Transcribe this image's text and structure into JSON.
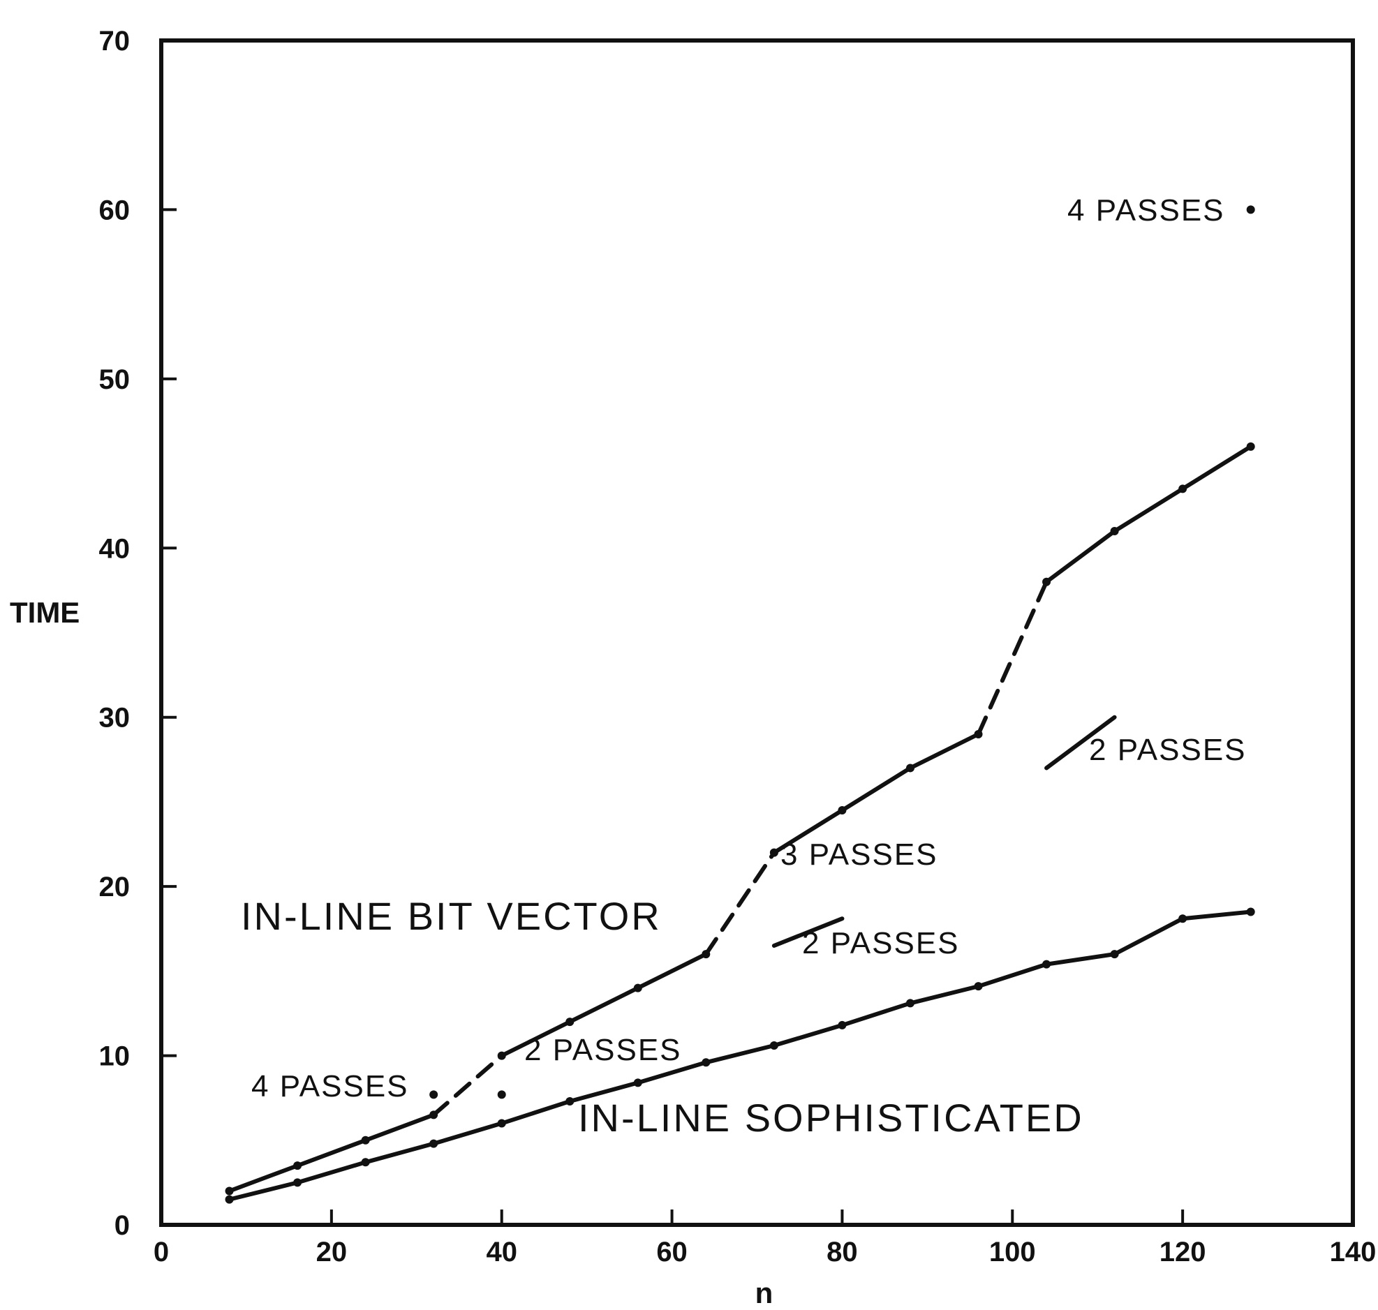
{
  "chart_data": {
    "type": "line",
    "title": "",
    "xlabel": "n",
    "ylabel": "TIME",
    "xlim": [
      0,
      140
    ],
    "ylim": [
      0,
      70
    ],
    "xticks": [
      0,
      20,
      40,
      60,
      80,
      100,
      120,
      140
    ],
    "yticks": [
      0,
      10,
      20,
      30,
      40,
      50,
      60,
      70
    ],
    "grid": false,
    "legend": "none",
    "series": [
      {
        "name": "IN-LINE BIT VECTOR",
        "segments": [
          {
            "style": "solid",
            "points": [
              [
                8,
                2
              ],
              [
                16,
                3.5
              ],
              [
                24,
                5
              ],
              [
                32,
                6.5
              ]
            ]
          },
          {
            "style": "dashed",
            "points": [
              [
                32,
                6.5
              ],
              [
                40,
                10
              ]
            ]
          },
          {
            "style": "solid",
            "points": [
              [
                40,
                10
              ],
              [
                48,
                12
              ],
              [
                56,
                14
              ],
              [
                64,
                16
              ]
            ]
          },
          {
            "style": "dashed",
            "points": [
              [
                64,
                16
              ],
              [
                72,
                22
              ]
            ]
          },
          {
            "style": "solid",
            "points": [
              [
                72,
                22
              ],
              [
                80,
                24.5
              ],
              [
                88,
                27
              ],
              [
                96,
                29
              ]
            ]
          },
          {
            "style": "dashed",
            "points": [
              [
                96,
                29
              ],
              [
                104,
                38
              ]
            ]
          },
          {
            "style": "solid",
            "points": [
              [
                104,
                38
              ],
              [
                112,
                41
              ],
              [
                120,
                43.5
              ],
              [
                128,
                46
              ]
            ]
          }
        ]
      },
      {
        "name": "IN-LINE SOPHISTICATED",
        "segments": [
          {
            "style": "solid",
            "points": [
              [
                8,
                1.5
              ],
              [
                16,
                2.5
              ],
              [
                24,
                3.7
              ],
              [
                32,
                4.8
              ],
              [
                40,
                6
              ],
              [
                48,
                7.3
              ],
              [
                56,
                8.4
              ],
              [
                64,
                9.6
              ],
              [
                72,
                10.6
              ],
              [
                80,
                11.8
              ],
              [
                88,
                13.1
              ],
              [
                96,
                14.1
              ],
              [
                104,
                15.4
              ],
              [
                112,
                16
              ],
              [
                120,
                18.1
              ],
              [
                128,
                18.5
              ]
            ]
          }
        ]
      }
    ],
    "extra_segments": [
      {
        "label": "2 PASSES",
        "points": [
          [
            72,
            16.5
          ],
          [
            80,
            18.1
          ]
        ]
      },
      {
        "label": "2 PASSES",
        "points": [
          [
            104,
            27
          ],
          [
            112,
            30
          ]
        ]
      }
    ],
    "extra_points": [
      {
        "label": "4 PASSES",
        "x": 32,
        "y": 7.7
      },
      {
        "label": "",
        "x": 40,
        "y": 7.7
      },
      {
        "label": "4 PASSES",
        "x": 128,
        "y": 60
      }
    ],
    "annotations": {
      "four_passes_low": "4 PASSES",
      "two_passes_low": "2 PASSES",
      "three_passes": "3 PASSES",
      "two_passes_mid": "2 PASSES",
      "two_passes_high": "2 PASSES",
      "four_passes_high": "4 PASSES"
    },
    "series_labels": {
      "bit_vector": "IN-LINE BIT VECTOR",
      "sophisticated": "IN-LINE SOPHISTICATED"
    }
  }
}
